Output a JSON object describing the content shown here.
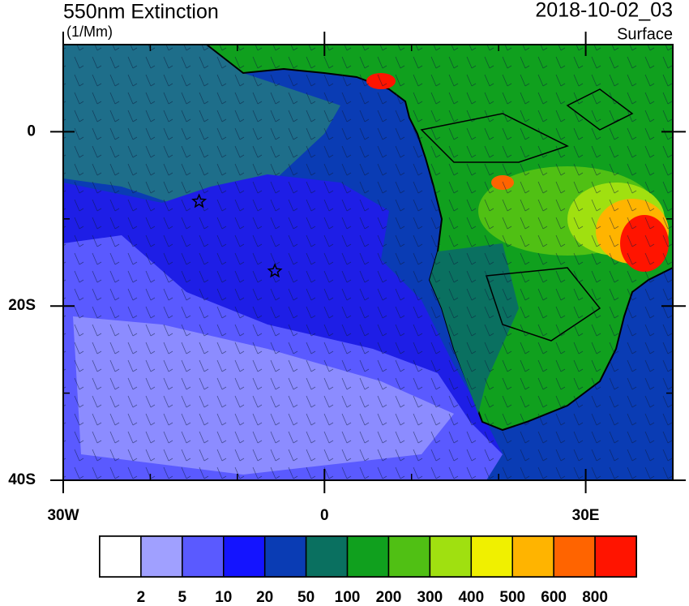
{
  "map": {
    "title": "550nm Extinction",
    "units": "(1/Mm)",
    "time": "2018-10-02_03",
    "level": "Surface",
    "xlim": [
      -30,
      40
    ],
    "ylim": [
      -40,
      10
    ],
    "xticks": [
      {
        "value": -30,
        "label": "30W"
      },
      0,
      {
        "value": 30,
        "label": "30E"
      }
    ],
    "yticks": [
      0,
      {
        "value": -20,
        "label": "20S"
      },
      {
        "value": -40,
        "label": "40S"
      }
    ],
    "xminor": [
      -20,
      -10,
      10,
      20,
      40
    ],
    "yminor": [
      10,
      -10,
      -30
    ],
    "colorbar": {
      "levels": [
        2,
        5,
        10,
        20,
        50,
        100,
        200,
        300,
        400,
        500,
        600,
        800
      ],
      "colors": [
        "#ffffff",
        "#a0a0ff",
        "#5a5aff",
        "#1414ff",
        "#0a3cb4",
        "#0a7060",
        "#10a01e",
        "#50c014",
        "#a0e010",
        "#f0f000",
        "#ffb400",
        "#ff6400",
        "#ff1400"
      ]
    },
    "markers": [
      {
        "lon": -14.4,
        "lat": -8.0
      },
      {
        "lon": -5.7,
        "lat": -16.0
      }
    ]
  }
}
